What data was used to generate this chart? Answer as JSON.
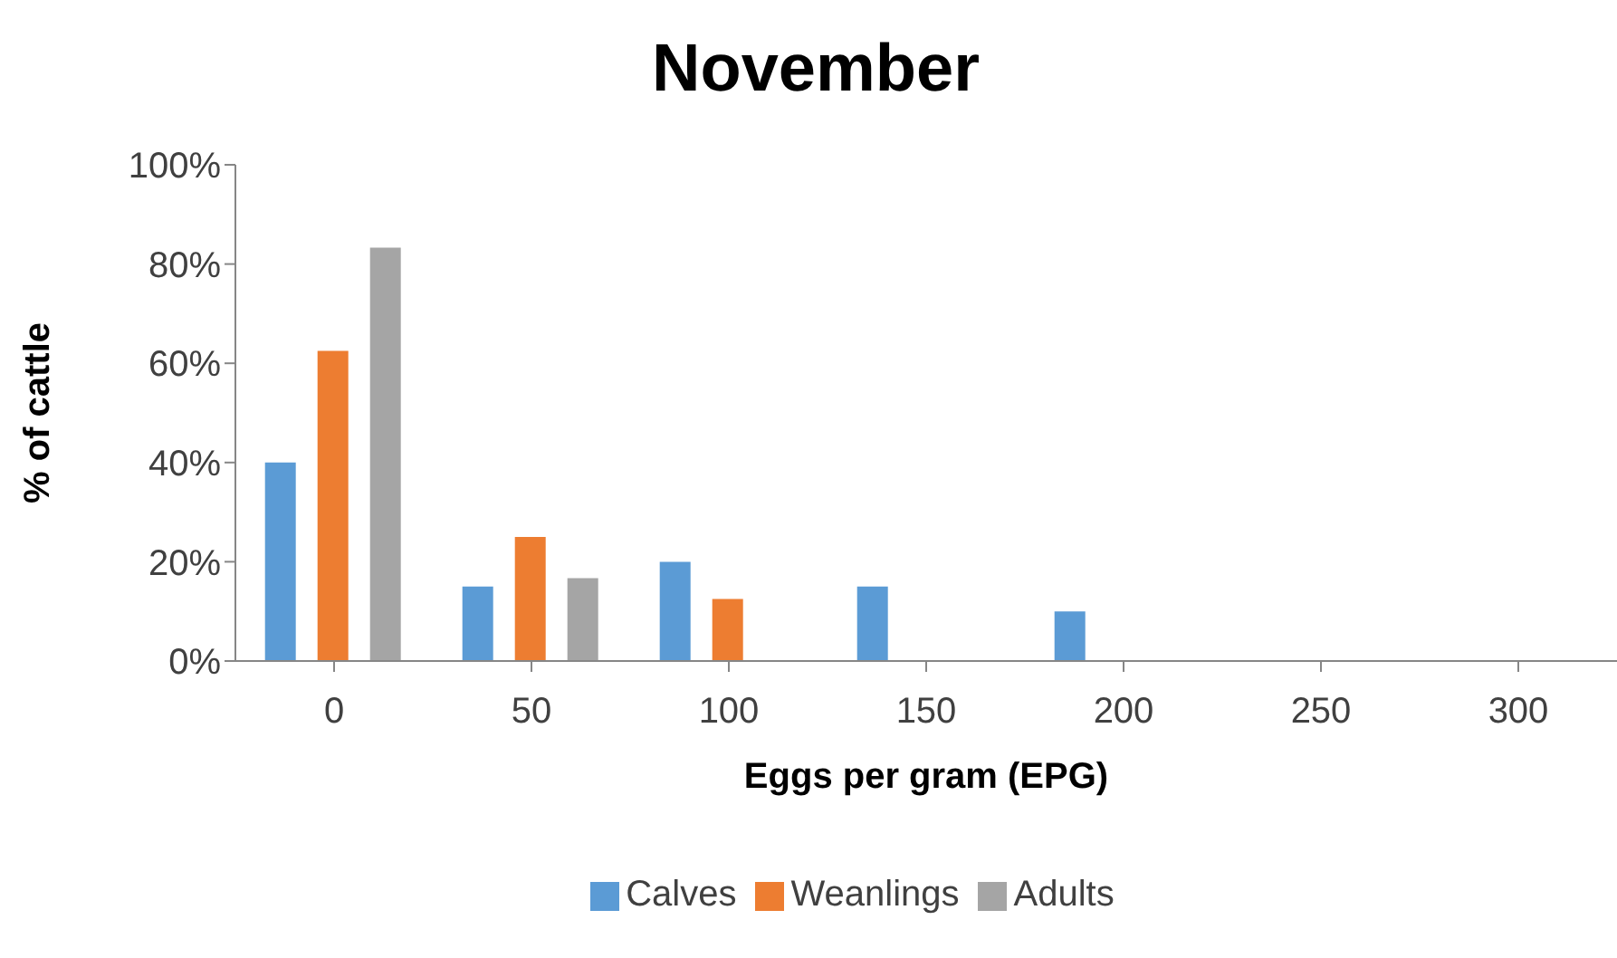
{
  "chart_data": {
    "type": "bar",
    "title": "November",
    "xlabel": "Eggs per gram (EPG)",
    "ylabel": "% of cattle",
    "categories": [
      "0",
      "50",
      "100",
      "150",
      "200",
      "250",
      "300"
    ],
    "series": [
      {
        "name": "Calves",
        "color": "#5b9bd5",
        "values": [
          40,
          15,
          20,
          15,
          10,
          0,
          0
        ]
      },
      {
        "name": "Weanlings",
        "color": "#ed7d31",
        "values": [
          62.5,
          25,
          12.5,
          0,
          0,
          0,
          0
        ]
      },
      {
        "name": "Adults",
        "color": "#a5a5a5",
        "values": [
          83.3,
          16.7,
          0,
          0,
          0,
          0,
          0
        ]
      }
    ],
    "ylim": [
      0,
      100
    ],
    "yticks": [
      {
        "value": 0,
        "label": "0%"
      },
      {
        "value": 20,
        "label": "20%"
      },
      {
        "value": 40,
        "label": "40%"
      },
      {
        "value": 60,
        "label": "60%"
      },
      {
        "value": 80,
        "label": "80%"
      },
      {
        "value": 100,
        "label": "100%"
      }
    ],
    "grid": false,
    "legend": "bottom"
  }
}
